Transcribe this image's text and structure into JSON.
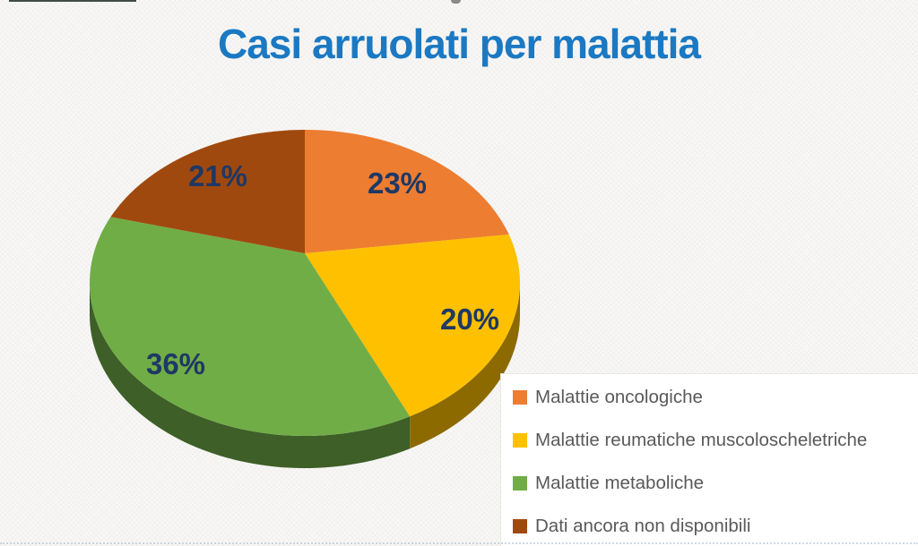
{
  "title": "Casi arruolati per malattia",
  "chart_data": {
    "type": "pie",
    "style": "3d",
    "title": "Casi arruolati per malattia",
    "unit": "%",
    "start_angle_deg": 0,
    "direction": "clockwise",
    "slices": [
      {
        "label": "Malattie oncologiche",
        "value": 23,
        "data_label": "23%",
        "color": "#ED7D31"
      },
      {
        "label": "Malattie reumatiche muscoloscheletriche",
        "value": 20,
        "data_label": "20%",
        "color": "#FFC000"
      },
      {
        "label": "Malattie metaboliche",
        "value": 36,
        "data_label": "36%",
        "color": "#70AD47"
      },
      {
        "label": "Dati ancora non disponibili",
        "value": 21,
        "data_label": "21%",
        "color": "#A0490F"
      }
    ],
    "legend": {
      "position": "bottom-right",
      "items": [
        "Malattie oncologiche",
        "Malattie reumatiche muscoloscheletriche",
        "Malattie metaboliche",
        "Dati ancora non disponibili"
      ]
    },
    "colors": {
      "title": "#1B79C3",
      "data_labels": "#1F3864",
      "legend_text": "#595959",
      "legend_background": "#FFFFFF"
    }
  }
}
